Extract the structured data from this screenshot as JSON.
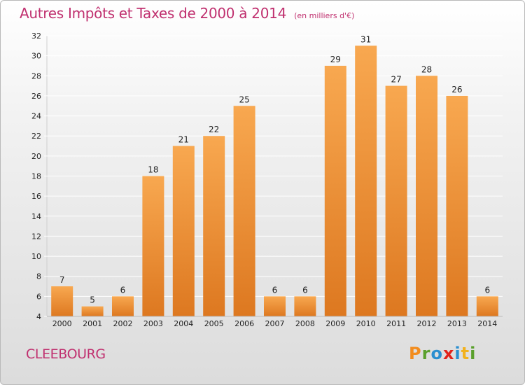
{
  "header": {
    "title": "Autres Impôts et Taxes de 2000 à 2014",
    "subtitle": "(en milliers d'€)"
  },
  "footer": {
    "commune": "CLEEBOURG",
    "logo_text": "Proxiti",
    "logo_letters": [
      {
        "char": "P",
        "color": "#f28c1e"
      },
      {
        "char": "r",
        "color": "#5aa02c"
      },
      {
        "char": "o",
        "color": "#2a8fd0"
      },
      {
        "char": "x",
        "color": "#e2231a"
      },
      {
        "char": "i",
        "color": "#2a8fd0"
      },
      {
        "char": "t",
        "color": "#f2b21e"
      },
      {
        "char": "i",
        "color": "#5aa02c"
      }
    ]
  },
  "colors": {
    "bar_light": "#f8a850",
    "bar_dark": "#dd7820",
    "grid": "#ffffff",
    "axis_text": "#222222",
    "title": "#c0306f"
  },
  "chart_data": {
    "type": "bar",
    "categories": [
      "2000",
      "2001",
      "2002",
      "2003",
      "2004",
      "2005",
      "2006",
      "2007",
      "2008",
      "2009",
      "2010",
      "2011",
      "2012",
      "2013",
      "2014"
    ],
    "values": [
      7,
      5,
      6,
      18,
      21,
      22,
      25,
      6,
      6,
      29,
      31,
      27,
      28,
      26,
      6
    ],
    "ylim": [
      4,
      32
    ],
    "yticks": [
      4,
      6,
      8,
      10,
      12,
      14,
      16,
      18,
      20,
      22,
      24,
      26,
      28,
      30,
      32
    ],
    "grid": true,
    "legend": "none"
  }
}
